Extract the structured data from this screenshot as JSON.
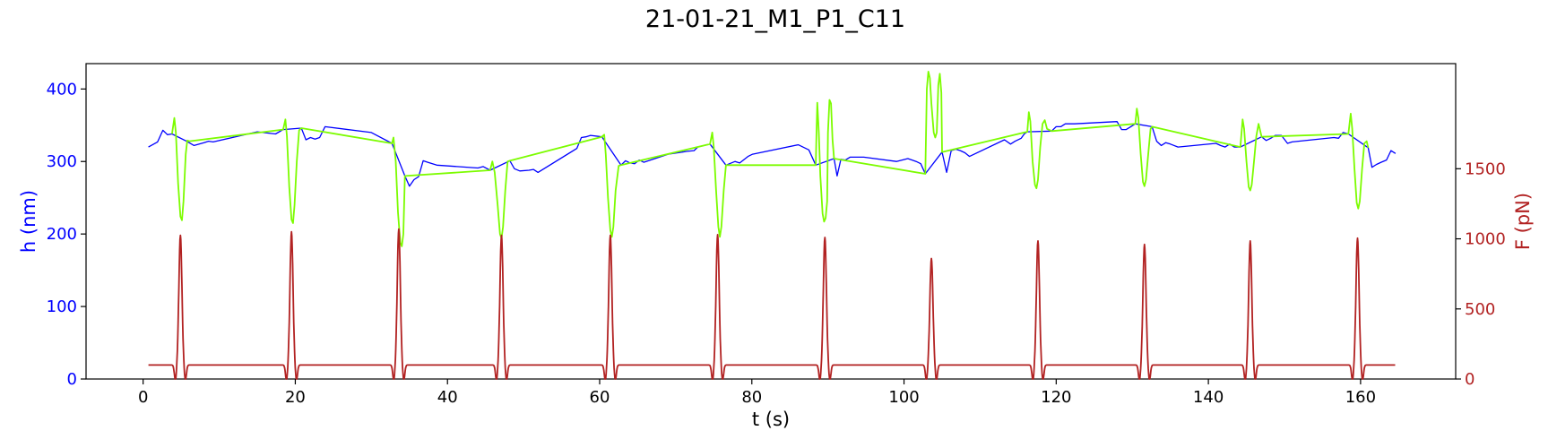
{
  "chart_data": {
    "type": "line",
    "title": "21-01-21_M1_P1_C11",
    "xlabel": "t (s)",
    "ylabel_left": "h (nm)",
    "ylabel_right": "F (pN)",
    "xlim": [
      -7.5,
      172.5
    ],
    "ylim_left": [
      0,
      435
    ],
    "ylim_right": [
      0,
      2250
    ],
    "xticks": [
      0,
      20,
      40,
      60,
      80,
      100,
      120,
      140,
      160
    ],
    "yticks_left": [
      0,
      100,
      200,
      300,
      400
    ],
    "yticks_right": [
      0,
      500,
      1000,
      1500
    ],
    "colors": {
      "h_baseline": "#0000ff",
      "h_compression": "#7cfc00",
      "force": "#b22222",
      "left_axis": "#0000ff",
      "right_axis": "#b22222"
    },
    "grid": false,
    "series": [
      {
        "axis": "left",
        "color": "#0000ff",
        "points": [
          [
            0.7,
            320
          ],
          [
            1.9,
            327
          ],
          [
            2.6,
            343
          ],
          [
            3.2,
            337
          ],
          [
            3.8,
            338
          ],
          [
            5.7,
            328
          ],
          [
            6.7,
            322
          ],
          [
            8.0,
            326
          ],
          [
            8.6,
            328
          ],
          [
            9.2,
            327
          ],
          [
            15.0,
            341
          ],
          [
            17.4,
            338
          ],
          [
            18.4,
            344
          ],
          [
            20.8,
            346
          ],
          [
            21.4,
            330
          ],
          [
            22.0,
            333
          ],
          [
            22.6,
            331
          ],
          [
            23.2,
            333
          ],
          [
            23.9,
            348
          ],
          [
            30.0,
            340
          ],
          [
            32.7,
            325
          ],
          [
            34.4,
            280
          ],
          [
            35.0,
            266
          ],
          [
            35.6,
            275
          ],
          [
            36.2,
            279
          ],
          [
            36.8,
            301
          ],
          [
            37.4,
            299
          ],
          [
            38.6,
            295
          ],
          [
            44.0,
            291
          ],
          [
            44.7,
            293
          ],
          [
            45.6,
            288
          ],
          [
            48.2,
            301
          ],
          [
            48.8,
            290
          ],
          [
            49.5,
            287
          ],
          [
            50.7,
            288
          ],
          [
            51.3,
            289
          ],
          [
            51.9,
            285
          ],
          [
            57.0,
            318
          ],
          [
            57.6,
            333
          ],
          [
            58.2,
            334
          ],
          [
            58.8,
            336
          ],
          [
            60.3,
            334
          ],
          [
            62.8,
            295
          ],
          [
            63.4,
            301
          ],
          [
            64.0,
            298
          ],
          [
            64.6,
            297
          ],
          [
            65.2,
            302
          ],
          [
            65.8,
            299
          ],
          [
            69.0,
            310
          ],
          [
            71.5,
            314
          ],
          [
            72.4,
            315
          ],
          [
            72.9,
            320
          ],
          [
            74.5,
            324
          ],
          [
            76.6,
            295
          ],
          [
            77.8,
            300
          ],
          [
            78.4,
            298
          ],
          [
            78.9,
            302
          ],
          [
            79.5,
            307
          ],
          [
            80.1,
            310
          ],
          [
            86.1,
            323
          ],
          [
            87.5,
            316
          ],
          [
            88.4,
            295
          ],
          [
            90.8,
            304
          ],
          [
            91.2,
            280
          ],
          [
            91.7,
            303
          ],
          [
            92.3,
            302
          ],
          [
            92.9,
            306
          ],
          [
            94.7,
            306
          ],
          [
            99.0,
            300
          ],
          [
            100.5,
            304
          ],
          [
            101.6,
            300
          ],
          [
            102.2,
            297
          ],
          [
            102.8,
            283
          ],
          [
            105.0,
            313
          ],
          [
            105.6,
            285
          ],
          [
            106.2,
            315
          ],
          [
            106.8,
            317
          ],
          [
            107.4,
            315
          ],
          [
            108.0,
            312
          ],
          [
            108.6,
            307
          ],
          [
            113.2,
            330
          ],
          [
            114.0,
            324
          ],
          [
            114.6,
            328
          ],
          [
            115.4,
            332
          ],
          [
            115.8,
            338
          ],
          [
            116.2,
            341
          ],
          [
            119.4,
            342
          ],
          [
            120.0,
            348
          ],
          [
            120.6,
            348
          ],
          [
            121.2,
            352
          ],
          [
            122.4,
            352
          ],
          [
            128.0,
            355
          ],
          [
            128.6,
            344
          ],
          [
            129.2,
            344
          ],
          [
            129.8,
            348
          ],
          [
            130.4,
            352
          ],
          [
            132.6,
            348
          ],
          [
            133.2,
            328
          ],
          [
            133.8,
            322
          ],
          [
            134.4,
            326
          ],
          [
            135.0,
            324
          ],
          [
            136.0,
            320
          ],
          [
            141.0,
            325
          ],
          [
            141.6,
            322
          ],
          [
            142.2,
            320
          ],
          [
            142.8,
            324
          ],
          [
            143.4,
            320
          ],
          [
            144.2,
            320
          ],
          [
            147.0,
            334
          ],
          [
            147.6,
            329
          ],
          [
            148.2,
            332
          ],
          [
            148.8,
            336
          ],
          [
            149.6,
            336
          ],
          [
            150.4,
            325
          ],
          [
            151.0,
            327
          ],
          [
            156.5,
            333
          ],
          [
            157.1,
            332
          ],
          [
            157.7,
            340
          ],
          [
            158.4,
            338
          ],
          [
            161.0,
            319
          ],
          [
            161.5,
            292
          ],
          [
            162.1,
            296
          ],
          [
            162.7,
            299
          ],
          [
            163.4,
            302
          ],
          [
            164.0,
            315
          ],
          [
            164.6,
            311
          ]
        ]
      },
      {
        "axis": "left",
        "color": "#7cfc00",
        "points": [
          [
            3.8,
            338
          ],
          [
            4.1,
            360
          ],
          [
            4.3,
            340
          ],
          [
            4.6,
            270
          ],
          [
            4.9,
            224
          ],
          [
            5.1,
            219
          ],
          [
            5.3,
            245
          ],
          [
            5.6,
            310
          ],
          [
            5.8,
            329
          ],
          [
            6.1,
            328
          ],
          [
            18.4,
            344
          ],
          [
            18.7,
            358
          ],
          [
            18.9,
            335
          ],
          [
            19.2,
            265
          ],
          [
            19.5,
            220
          ],
          [
            19.7,
            215
          ],
          [
            19.9,
            240
          ],
          [
            20.2,
            300
          ],
          [
            20.5,
            343
          ],
          [
            20.8,
            346
          ],
          [
            32.7,
            325
          ],
          [
            32.9,
            333
          ],
          [
            33.2,
            300
          ],
          [
            33.5,
            230
          ],
          [
            33.8,
            188
          ],
          [
            34.0,
            183
          ],
          [
            34.2,
            200
          ],
          [
            34.4,
            280
          ],
          [
            45.6,
            288
          ],
          [
            45.9,
            300
          ],
          [
            46.2,
            285
          ],
          [
            46.6,
            240
          ],
          [
            46.9,
            200
          ],
          [
            47.1,
            194
          ],
          [
            47.3,
            210
          ],
          [
            47.6,
            260
          ],
          [
            47.9,
            300
          ],
          [
            48.2,
            301
          ],
          [
            60.3,
            334
          ],
          [
            60.6,
            337
          ],
          [
            60.8,
            310
          ],
          [
            61.1,
            250
          ],
          [
            61.4,
            205
          ],
          [
            61.6,
            196
          ],
          [
            61.8,
            210
          ],
          [
            62.1,
            260
          ],
          [
            62.5,
            294
          ],
          [
            62.8,
            295
          ],
          [
            74.5,
            324
          ],
          [
            74.8,
            340
          ],
          [
            75.0,
            320
          ],
          [
            75.3,
            260
          ],
          [
            75.6,
            210
          ],
          [
            75.8,
            196
          ],
          [
            76.0,
            210
          ],
          [
            76.3,
            260
          ],
          [
            76.6,
            295
          ],
          [
            88.4,
            295
          ],
          [
            88.5,
            340
          ],
          [
            88.6,
            381
          ],
          [
            88.8,
            340
          ],
          [
            89.0,
            280
          ],
          [
            89.3,
            228
          ],
          [
            89.5,
            217
          ],
          [
            89.7,
            222
          ],
          [
            89.9,
            245
          ],
          [
            90.0,
            340
          ],
          [
            90.2,
            385
          ],
          [
            90.4,
            380
          ],
          [
            90.6,
            330
          ],
          [
            90.8,
            304
          ],
          [
            102.8,
            283
          ],
          [
            103.0,
            400
          ],
          [
            103.2,
            424
          ],
          [
            103.4,
            415
          ],
          [
            103.6,
            380
          ],
          [
            103.9,
            340
          ],
          [
            104.1,
            333
          ],
          [
            104.3,
            340
          ],
          [
            104.5,
            405
          ],
          [
            104.7,
            421
          ],
          [
            104.9,
            395
          ],
          [
            105.0,
            313
          ],
          [
            116.2,
            341
          ],
          [
            116.4,
            368
          ],
          [
            116.6,
            355
          ],
          [
            116.9,
            300
          ],
          [
            117.2,
            268
          ],
          [
            117.4,
            263
          ],
          [
            117.6,
            275
          ],
          [
            117.9,
            320
          ],
          [
            118.2,
            352
          ],
          [
            118.5,
            357
          ],
          [
            118.8,
            345
          ],
          [
            119.4,
            342
          ],
          [
            130.4,
            352
          ],
          [
            130.6,
            373
          ],
          [
            130.8,
            360
          ],
          [
            131.1,
            310
          ],
          [
            131.4,
            272
          ],
          [
            131.6,
            266
          ],
          [
            131.8,
            275
          ],
          [
            132.1,
            310
          ],
          [
            132.4,
            345
          ],
          [
            132.6,
            348
          ],
          [
            144.2,
            320
          ],
          [
            144.5,
            358
          ],
          [
            144.7,
            345
          ],
          [
            145.0,
            300
          ],
          [
            145.3,
            265
          ],
          [
            145.5,
            260
          ],
          [
            145.7,
            268
          ],
          [
            146.0,
            300
          ],
          [
            146.3,
            335
          ],
          [
            146.6,
            352
          ],
          [
            147.0,
            334
          ],
          [
            158.4,
            338
          ],
          [
            158.7,
            366
          ],
          [
            158.9,
            345
          ],
          [
            159.2,
            290
          ],
          [
            159.5,
            243
          ],
          [
            159.7,
            235
          ],
          [
            159.9,
            245
          ],
          [
            160.2,
            290
          ],
          [
            160.5,
            325
          ],
          [
            160.8,
            328
          ],
          [
            161.0,
            319
          ]
        ]
      },
      {
        "axis": "right",
        "color": "#b22222",
        "baseline": 100,
        "start": 0.7,
        "end": 164.6,
        "pulses": [
          {
            "t": 4.9,
            "peak": 1025
          },
          {
            "t": 19.5,
            "peak": 1050
          },
          {
            "t": 33.6,
            "peak": 1070
          },
          {
            "t": 47.1,
            "peak": 1025
          },
          {
            "t": 61.4,
            "peak": 1025
          },
          {
            "t": 75.5,
            "peak": 1030
          },
          {
            "t": 89.6,
            "peak": 1010
          },
          {
            "t": 103.6,
            "peak": 860
          },
          {
            "t": 117.6,
            "peak": 985
          },
          {
            "t": 131.6,
            "peak": 960
          },
          {
            "t": 145.5,
            "peak": 985
          },
          {
            "t": 159.6,
            "peak": 1005
          }
        ]
      }
    ]
  }
}
